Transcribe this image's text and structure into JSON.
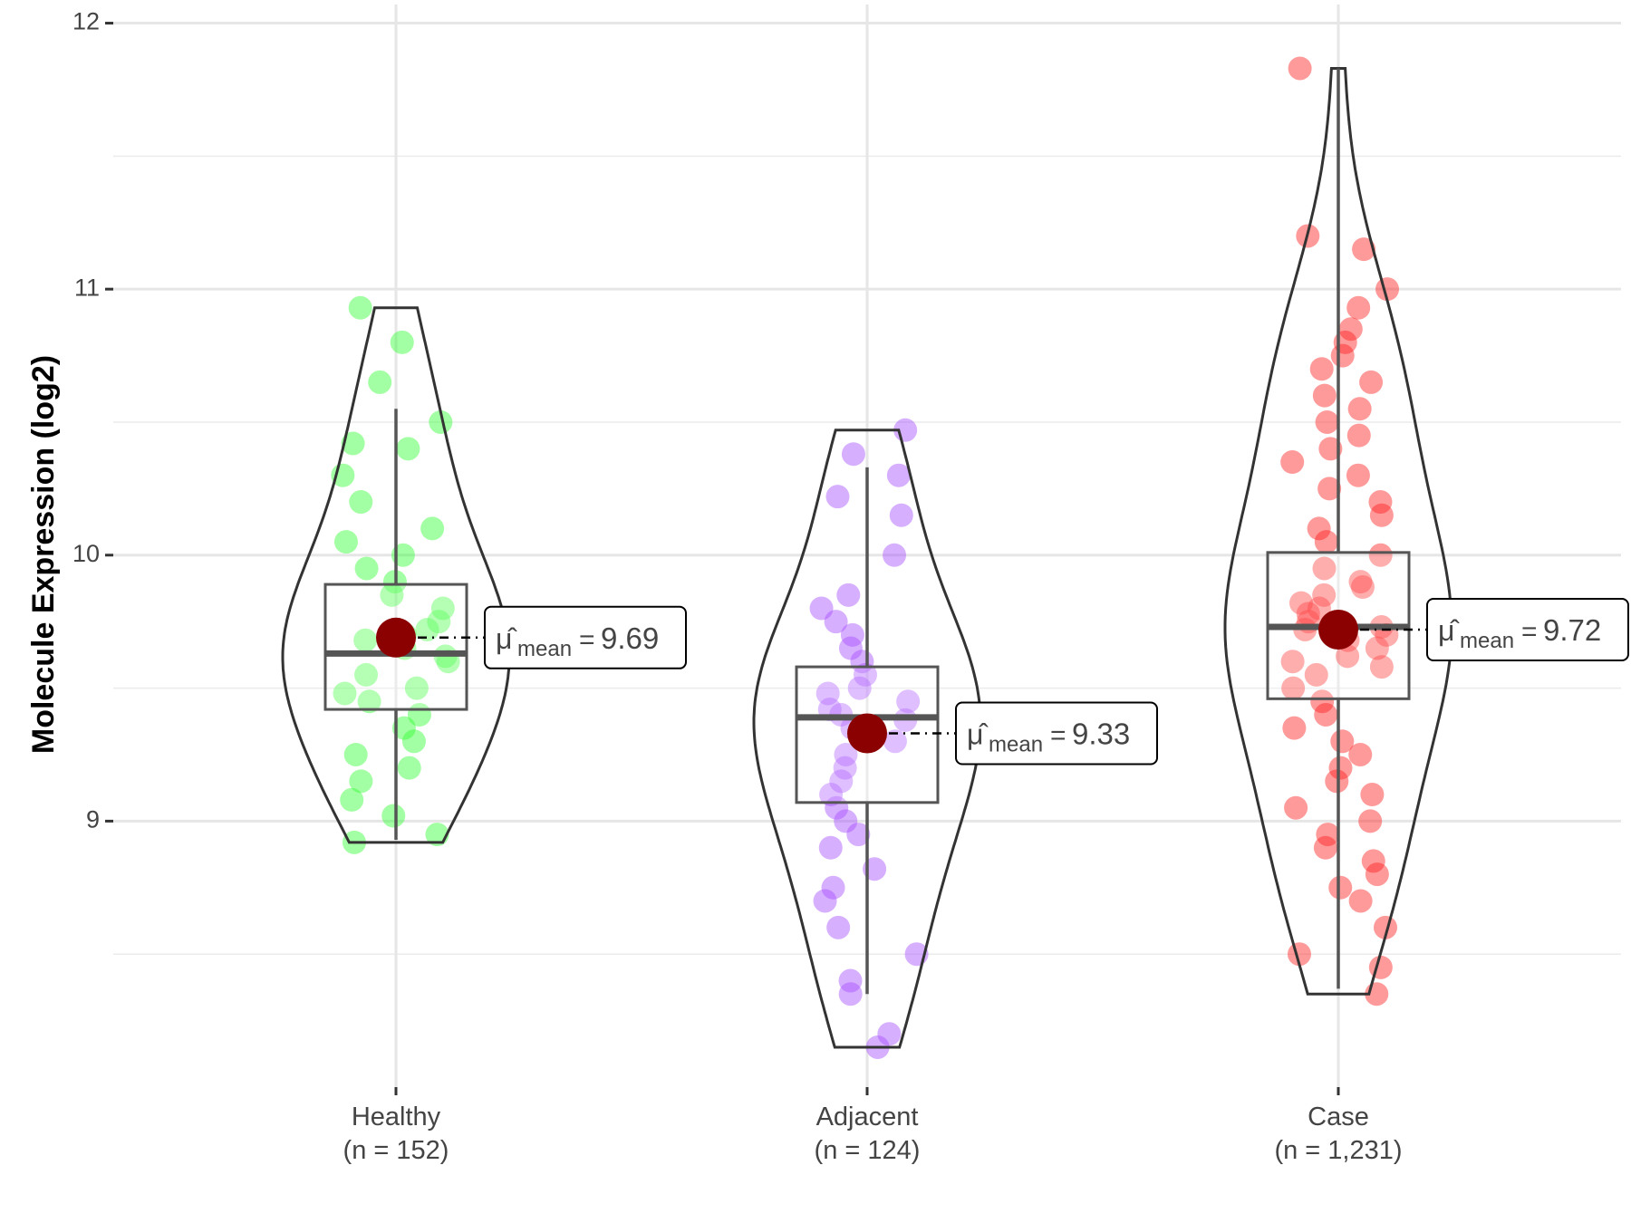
{
  "chart_data": {
    "type": "violin",
    "y_label": "Molecule Expression (log2)",
    "categories": [
      "Healthy",
      "Adjacent",
      "Case"
    ],
    "sublabels": [
      "(n = 152)",
      "(n = 124)",
      "(n = 1,231)"
    ],
    "ylim": [
      8.0,
      12.07
    ],
    "yticks": [
      9,
      10,
      11,
      12
    ],
    "yminor": [
      8.5,
      9.5,
      10.5,
      11.5
    ],
    "grid": true,
    "mean_symbol": "μ̂",
    "mean_subscript": "mean",
    "mean_sign": "=",
    "mean_color": "#8b0000",
    "groups": [
      {
        "name": "Healthy",
        "color": "#33ff33",
        "points": [
          10.93,
          10.8,
          10.65,
          10.5,
          10.42,
          10.4,
          10.3,
          10.2,
          10.1,
          10.05,
          10.0,
          9.95,
          9.9,
          9.85,
          9.8,
          9.75,
          9.72,
          9.7,
          9.68,
          9.65,
          9.62,
          9.6,
          9.55,
          9.5,
          9.48,
          9.45,
          9.4,
          9.35,
          9.3,
          9.25,
          9.2,
          9.15,
          9.08,
          9.02,
          8.95,
          8.92
        ],
        "box": {
          "whisker_low": 8.93,
          "q1": 9.42,
          "median": 9.63,
          "q3": 9.89,
          "whisker_high": 10.55
        },
        "mean": 9.69
      },
      {
        "name": "Adjacent",
        "color": "#a64dff",
        "points": [
          10.47,
          10.38,
          10.3,
          10.22,
          10.15,
          10.0,
          9.85,
          9.8,
          9.75,
          9.7,
          9.65,
          9.6,
          9.55,
          9.5,
          9.48,
          9.45,
          9.42,
          9.4,
          9.38,
          9.35,
          9.3,
          9.25,
          9.2,
          9.15,
          9.1,
          9.05,
          9.0,
          8.95,
          8.9,
          8.82,
          8.75,
          8.7,
          8.6,
          8.5,
          8.4,
          8.35,
          8.2,
          8.15
        ],
        "box": {
          "whisker_low": 8.35,
          "q1": 9.07,
          "median": 9.39,
          "q3": 9.58,
          "whisker_high": 10.33
        },
        "mean": 9.33
      },
      {
        "name": "Case",
        "color": "#ff2020",
        "points": [
          11.83,
          11.2,
          11.15,
          11.0,
          10.93,
          10.85,
          10.8,
          10.75,
          10.7,
          10.65,
          10.6,
          10.55,
          10.5,
          10.45,
          10.4,
          10.35,
          10.3,
          10.25,
          10.2,
          10.15,
          10.1,
          10.05,
          10.0,
          9.95,
          9.9,
          9.88,
          9.85,
          9.82,
          9.8,
          9.78,
          9.75,
          9.73,
          9.72,
          9.7,
          9.68,
          9.65,
          9.62,
          9.6,
          9.58,
          9.55,
          9.5,
          9.45,
          9.4,
          9.35,
          9.3,
          9.25,
          9.2,
          9.15,
          9.1,
          9.05,
          9.0,
          8.95,
          8.9,
          8.85,
          8.8,
          8.75,
          8.7,
          8.6,
          8.5,
          8.45,
          8.35
        ],
        "box": {
          "whisker_low": 8.37,
          "q1": 9.46,
          "median": 9.73,
          "q3": 10.01,
          "whisker_high": 11.83
        },
        "mean": 9.72
      }
    ]
  }
}
